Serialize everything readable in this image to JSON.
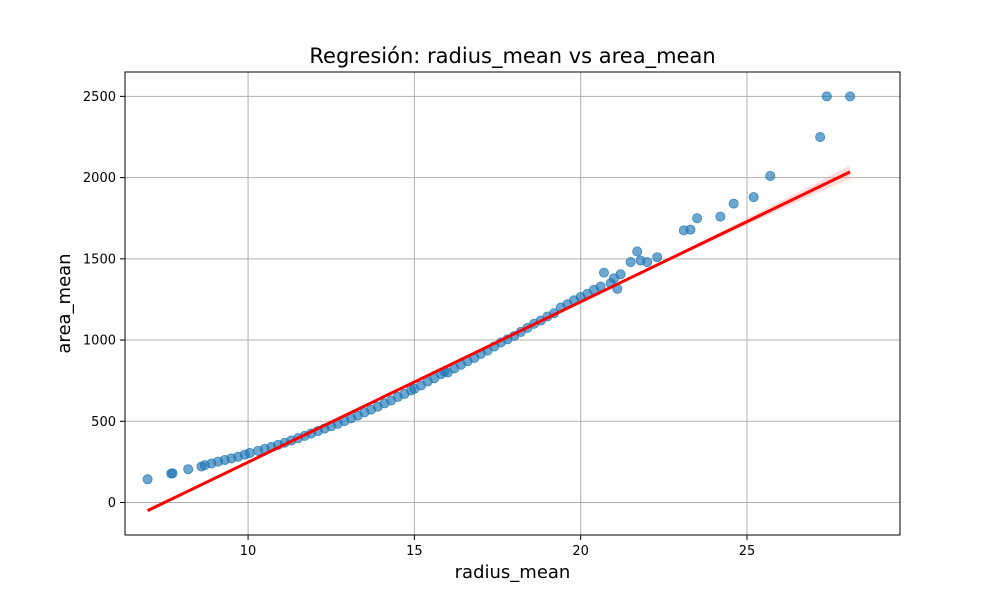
{
  "chart_data": {
    "type": "scatter",
    "title": "Regresión: radius_mean vs area_mean",
    "xlabel": "radius_mean",
    "ylabel": "area_mean",
    "xlim": [
      6.3,
      29.6
    ],
    "ylim": [
      -200,
      2650
    ],
    "xticks": [
      10,
      15,
      20,
      25
    ],
    "yticks": [
      0,
      500,
      1000,
      1500,
      2000,
      2500
    ],
    "grid": true,
    "colors": {
      "points": "#1f77b4",
      "regression_line": "#ff0000",
      "confidence_band": "#ff9a9a",
      "grid": "#b0b0b0",
      "axes": "#000000"
    },
    "series": [
      {
        "kind": "points",
        "points": [
          [
            6.98,
            143
          ],
          [
            7.69,
            178
          ],
          [
            7.73,
            180
          ],
          [
            8.2,
            205
          ],
          [
            8.6,
            222
          ],
          [
            8.7,
            230
          ],
          [
            8.9,
            240
          ],
          [
            9.1,
            252
          ],
          [
            9.3,
            262
          ],
          [
            9.5,
            272
          ],
          [
            9.7,
            282
          ],
          [
            9.9,
            295
          ],
          [
            10.05,
            305
          ],
          [
            10.3,
            318
          ],
          [
            10.5,
            330
          ],
          [
            10.7,
            342
          ],
          [
            10.9,
            355
          ],
          [
            11.1,
            368
          ],
          [
            11.3,
            382
          ],
          [
            11.5,
            396
          ],
          [
            11.7,
            410
          ],
          [
            11.9,
            425
          ],
          [
            12.1,
            440
          ],
          [
            12.3,
            455
          ],
          [
            12.5,
            470
          ],
          [
            12.7,
            485
          ],
          [
            12.9,
            502
          ],
          [
            13.1,
            518
          ],
          [
            13.3,
            535
          ],
          [
            13.5,
            555
          ],
          [
            13.7,
            572
          ],
          [
            13.9,
            590
          ],
          [
            14.1,
            610
          ],
          [
            14.3,
            628
          ],
          [
            14.5,
            650
          ],
          [
            14.7,
            668
          ],
          [
            14.9,
            690
          ],
          [
            15.0,
            700
          ],
          [
            15.2,
            720
          ],
          [
            15.4,
            745
          ],
          [
            15.6,
            765
          ],
          [
            15.8,
            790
          ],
          [
            15.9,
            805
          ],
          [
            16.0,
            800
          ],
          [
            16.2,
            825
          ],
          [
            16.4,
            848
          ],
          [
            16.6,
            870
          ],
          [
            16.8,
            890
          ],
          [
            17.0,
            915
          ],
          [
            17.2,
            935
          ],
          [
            17.4,
            960
          ],
          [
            17.6,
            985
          ],
          [
            17.8,
            1005
          ],
          [
            18.0,
            1025
          ],
          [
            18.2,
            1050
          ],
          [
            18.4,
            1075
          ],
          [
            18.6,
            1100
          ],
          [
            18.8,
            1120
          ],
          [
            19.0,
            1145
          ],
          [
            19.2,
            1165
          ],
          [
            19.4,
            1200
          ],
          [
            19.6,
            1220
          ],
          [
            19.8,
            1245
          ],
          [
            20.0,
            1265
          ],
          [
            20.2,
            1285
          ],
          [
            20.4,
            1310
          ],
          [
            20.6,
            1330
          ],
          [
            20.7,
            1415
          ],
          [
            20.9,
            1350
          ],
          [
            21.0,
            1380
          ],
          [
            21.1,
            1315
          ],
          [
            21.2,
            1405
          ],
          [
            21.5,
            1480
          ],
          [
            21.7,
            1545
          ],
          [
            21.8,
            1490
          ],
          [
            22.0,
            1480
          ],
          [
            22.3,
            1510
          ],
          [
            23.1,
            1675
          ],
          [
            23.3,
            1680
          ],
          [
            23.5,
            1750
          ],
          [
            24.2,
            1760
          ],
          [
            24.6,
            1840
          ],
          [
            25.2,
            1880
          ],
          [
            25.7,
            2010
          ],
          [
            27.2,
            2250
          ],
          [
            27.4,
            2500
          ],
          [
            28.1,
            2500
          ]
        ]
      },
      {
        "kind": "regression",
        "points": [
          [
            6.98,
            -50
          ],
          [
            28.1,
            2035
          ]
        ],
        "band_halfwidth_at_ends": [
          12,
          40
        ]
      }
    ]
  }
}
